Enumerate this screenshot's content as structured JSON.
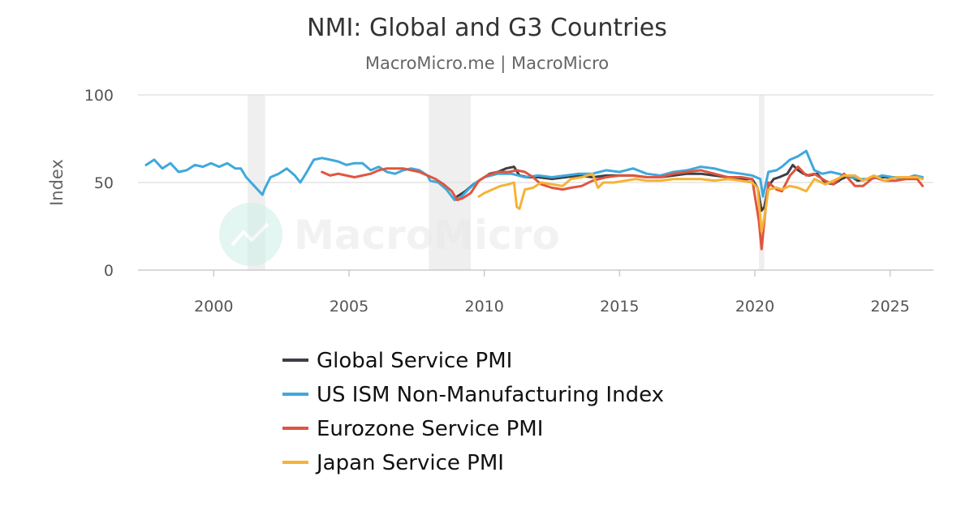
{
  "chart_data": {
    "type": "line",
    "title": "NMI: Global and G3 Countries",
    "subtitle": "MacroMicro.me | MacroMicro",
    "ylabel": "Index",
    "xlim": [
      1997.2,
      2026.6
    ],
    "ylim": [
      0,
      100
    ],
    "y_ticks": [
      0,
      50,
      100
    ],
    "x_ticks": [
      2000,
      2005,
      2010,
      2015,
      2020,
      2025
    ],
    "grid": true,
    "legend_position": "bottom-center",
    "watermark": "MacroMicro",
    "recession_bands": [
      [
        2001.25,
        2001.9
      ],
      [
        2007.95,
        2009.5
      ],
      [
        2020.15,
        2020.35
      ]
    ],
    "series": [
      {
        "name": "Global Service PMI",
        "color": "#3d3f44",
        "x": [
          2009.0,
          2009.3,
          2009.6,
          2009.9,
          2010.2,
          2010.5,
          2010.8,
          2011.1,
          2011.3,
          2011.6,
          2012.0,
          2012.5,
          2013.0,
          2013.5,
          2014.0,
          2014.5,
          2015.0,
          2015.5,
          2016.0,
          2016.5,
          2017.0,
          2017.5,
          2018.0,
          2018.5,
          2019.0,
          2019.5,
          2019.9,
          2020.1,
          2020.25,
          2020.35,
          2020.5,
          2020.7,
          2020.9,
          2021.2,
          2021.4,
          2021.6,
          2021.8,
          2022.0,
          2022.3,
          2022.6,
          2022.9,
          2023.2,
          2023.5,
          2023.8,
          2024.2,
          2024.6,
          2025.0,
          2025.4,
          2025.8,
          2026.1
        ],
        "y": [
          42,
          45,
          49,
          52,
          55,
          56,
          58,
          59,
          54,
          53,
          53,
          52,
          53,
          54,
          53,
          54,
          54,
          54,
          53,
          53,
          54,
          55,
          55,
          54,
          53,
          52,
          52,
          47,
          34,
          36,
          48,
          52,
          53,
          55,
          60,
          57,
          55,
          54,
          55,
          50,
          49,
          52,
          54,
          51,
          52,
          53,
          53,
          53,
          53,
          53
        ]
      },
      {
        "name": "US ISM Non-Manufacturing Index",
        "color": "#3fa8dc",
        "x": [
          1997.5,
          1997.8,
          1998.1,
          1998.4,
          1998.7,
          1999.0,
          1999.3,
          1999.6,
          1999.9,
          2000.2,
          2000.5,
          2000.8,
          2001.0,
          2001.2,
          2001.5,
          2001.8,
          2001.9,
          2002.1,
          2002.4,
          2002.7,
          2003.0,
          2003.2,
          2003.4,
          2003.7,
          2004.0,
          2004.3,
          2004.6,
          2004.9,
          2005.2,
          2005.5,
          2005.8,
          2006.1,
          2006.4,
          2006.7,
          2007.0,
          2007.3,
          2007.6,
          2007.9,
          2008.0,
          2008.3,
          2008.6,
          2008.9,
          2009.1,
          2009.4,
          2009.7,
          2010.0,
          2010.5,
          2011.0,
          2011.5,
          2012.0,
          2012.5,
          2013.0,
          2013.5,
          2014.0,
          2014.5,
          2015.0,
          2015.5,
          2016.0,
          2016.5,
          2017.0,
          2017.5,
          2018.0,
          2018.5,
          2019.0,
          2019.5,
          2019.9,
          2020.2,
          2020.3,
          2020.5,
          2020.8,
          2021.0,
          2021.3,
          2021.6,
          2021.9,
          2022.2,
          2022.5,
          2022.8,
          2023.1,
          2023.5,
          2023.9,
          2024.3,
          2024.7,
          2025.1,
          2025.5,
          2025.9,
          2026.2
        ],
        "y": [
          60,
          63,
          58,
          61,
          56,
          57,
          60,
          59,
          61,
          59,
          61,
          58,
          58,
          53,
          48,
          43,
          47,
          53,
          55,
          58,
          54,
          50,
          55,
          63,
          64,
          63,
          62,
          60,
          61,
          61,
          57,
          59,
          56,
          55,
          57,
          58,
          57,
          54,
          51,
          50,
          46,
          40,
          41,
          46,
          50,
          53,
          55,
          55,
          53,
          54,
          53,
          54,
          55,
          55,
          57,
          56,
          58,
          55,
          54,
          56,
          57,
          59,
          58,
          56,
          55,
          54,
          52,
          42,
          56,
          57,
          59,
          63,
          65,
          68,
          57,
          55,
          56,
          55,
          53,
          52,
          52,
          54,
          53,
          52,
          54,
          53
        ]
      },
      {
        "name": "Eurozone Service PMI",
        "color": "#e0553f",
        "x": [
          2004.0,
          2004.3,
          2004.6,
          2004.9,
          2005.2,
          2005.5,
          2005.8,
          2006.1,
          2006.4,
          2006.7,
          2007.0,
          2007.3,
          2007.6,
          2007.9,
          2008.2,
          2008.5,
          2008.8,
          2009.0,
          2009.2,
          2009.5,
          2009.8,
          2010.1,
          2010.5,
          2010.9,
          2011.2,
          2011.5,
          2011.8,
          2012.1,
          2012.5,
          2012.9,
          2013.2,
          2013.6,
          2014.0,
          2014.5,
          2015.0,
          2015.5,
          2016.0,
          2016.5,
          2017.0,
          2017.5,
          2018.0,
          2018.5,
          2019.0,
          2019.5,
          2019.9,
          2020.15,
          2020.25,
          2020.35,
          2020.5,
          2020.8,
          2021.0,
          2021.3,
          2021.6,
          2021.9,
          2022.2,
          2022.6,
          2022.9,
          2023.3,
          2023.7,
          2024.0,
          2024.4,
          2024.8,
          2025.2,
          2025.6,
          2026.0,
          2026.2
        ],
        "y": [
          56,
          54,
          55,
          54,
          53,
          54,
          55,
          57,
          58,
          58,
          58,
          57,
          56,
          54,
          52,
          49,
          45,
          40,
          41,
          44,
          51,
          54,
          56,
          56,
          57,
          56,
          53,
          49,
          47,
          46,
          47,
          48,
          51,
          53,
          54,
          54,
          53,
          53,
          55,
          56,
          57,
          55,
          53,
          53,
          52,
          28,
          12,
          28,
          50,
          46,
          45,
          54,
          59,
          54,
          55,
          51,
          49,
          55,
          48,
          48,
          53,
          51,
          51,
          52,
          52,
          48
        ]
      },
      {
        "name": "Japan Service PMI",
        "color": "#f5b335",
        "x": [
          2009.8,
          2010.0,
          2010.3,
          2010.6,
          2010.9,
          2011.1,
          2011.2,
          2011.3,
          2011.5,
          2011.8,
          2012.1,
          2012.5,
          2012.9,
          2013.2,
          2013.6,
          2014.0,
          2014.2,
          2014.4,
          2014.8,
          2015.2,
          2015.6,
          2016.0,
          2016.5,
          2017.0,
          2017.5,
          2018.0,
          2018.5,
          2019.0,
          2019.5,
          2019.9,
          2020.1,
          2020.25,
          2020.35,
          2020.5,
          2020.8,
          2021.0,
          2021.3,
          2021.6,
          2021.9,
          2022.2,
          2022.6,
          2022.9,
          2023.3,
          2023.7,
          2024.0,
          2024.4,
          2024.8,
          2025.2,
          2025.6,
          2026.0,
          2026.2
        ],
        "y": [
          42,
          44,
          46,
          48,
          49,
          50,
          36,
          35,
          46,
          47,
          50,
          49,
          48,
          52,
          53,
          55,
          47,
          50,
          50,
          51,
          52,
          51,
          51,
          52,
          52,
          52,
          51,
          52,
          51,
          50,
          47,
          22,
          30,
          46,
          47,
          46,
          48,
          47,
          45,
          52,
          49,
          51,
          54,
          54,
          51,
          54,
          51,
          53,
          53,
          53,
          52
        ]
      }
    ]
  }
}
